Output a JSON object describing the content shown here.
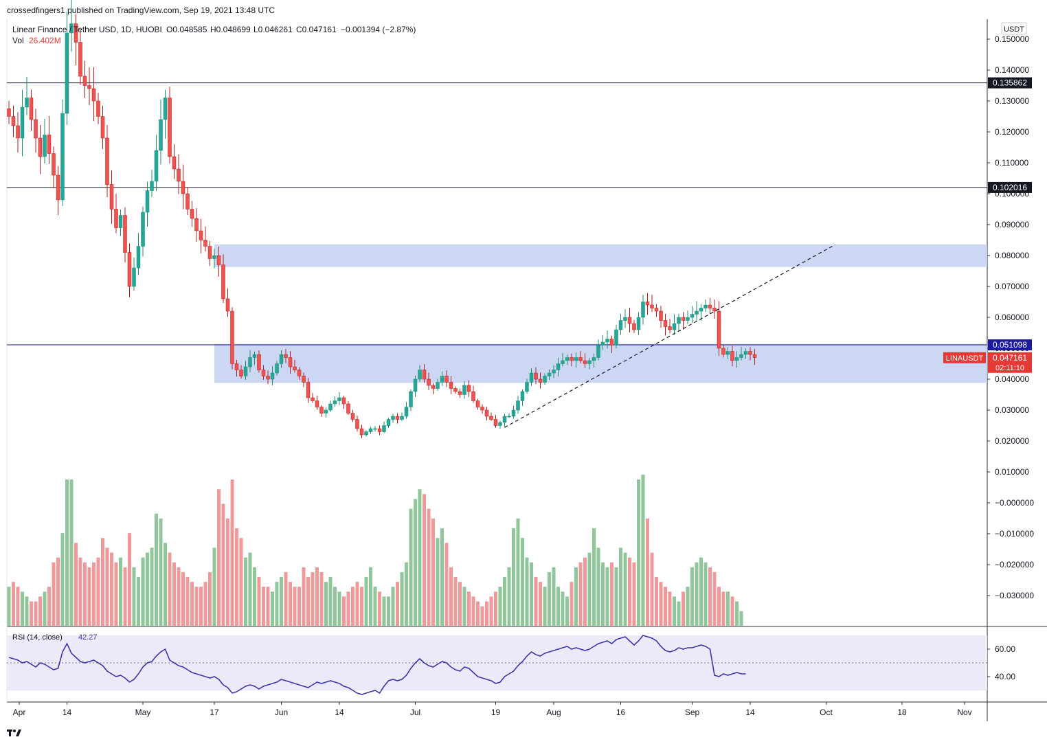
{
  "header": {
    "publisher_line": "crossedfingers1 published on TradingView.com, Sep 19, 2021 13:48 UTC"
  },
  "legend": {
    "symbol": "Linear Finance / Tether USD, 1D, HUOBI",
    "open": "O0.048585",
    "high": "H0.048699",
    "low": "L0.046261",
    "close": "C0.047161",
    "change": "−0.001394 (−2.87%)",
    "vol_label": "Vol",
    "vol_value": "26.402M",
    "rsi_label": "RSI (14, close)",
    "rsi_value": "42.27"
  },
  "price_axis": {
    "currency": "USDT",
    "ticks": [
      {
        "v": 0.15,
        "t": "0.150000"
      },
      {
        "v": 0.14,
        "t": "0.140000"
      },
      {
        "v": 0.13,
        "t": "0.130000"
      },
      {
        "v": 0.12,
        "t": "0.120000"
      },
      {
        "v": 0.11,
        "t": "0.110000"
      },
      {
        "v": 0.1,
        "t": "0.100000"
      },
      {
        "v": 0.09,
        "t": "0.090000"
      },
      {
        "v": 0.08,
        "t": "0.080000"
      },
      {
        "v": 0.07,
        "t": "0.070000"
      },
      {
        "v": 0.06,
        "t": "0.060000"
      },
      {
        "v": 0.05,
        "t": "0.050000"
      },
      {
        "v": 0.04,
        "t": "0.040000"
      },
      {
        "v": 0.03,
        "t": "0.030000"
      },
      {
        "v": 0.02,
        "t": "0.020000"
      },
      {
        "v": 0.01,
        "t": "0.010000"
      },
      {
        "v": 0.0,
        "t": "−0.000000"
      },
      {
        "v": -0.01,
        "t": "−0.010000"
      },
      {
        "v": -0.02,
        "t": "−0.020000"
      },
      {
        "v": -0.03,
        "t": "−0.030000"
      }
    ],
    "tags": [
      {
        "value": 0.135862,
        "text": "0.135862",
        "bg": "#131722",
        "fg": "#ffffff"
      },
      {
        "value": 0.102016,
        "text": "0.102016",
        "bg": "#131722",
        "fg": "#ffffff"
      },
      {
        "value": 0.051098,
        "text": "0.051098",
        "bg": "#1a1a9c",
        "fg": "#ffffff"
      }
    ],
    "last_price": {
      "value": 0.047161,
      "text": "0.047161",
      "countdown": "02:11:10",
      "ticker": "LINAUSDT",
      "bg": "#e53935"
    }
  },
  "rsi_axis": {
    "ticks": [
      {
        "v": 60,
        "t": "60.00"
      },
      {
        "v": 40,
        "t": "40.00"
      }
    ]
  },
  "time_axis": {
    "ticks": [
      {
        "d": 0,
        "t": "Apr"
      },
      {
        "d": 13,
        "t": "14"
      },
      {
        "d": 30,
        "t": "May"
      },
      {
        "d": 46,
        "t": "17"
      },
      {
        "d": 61,
        "t": "Jun"
      },
      {
        "d": 74,
        "t": "14"
      },
      {
        "d": 91,
        "t": "Jul"
      },
      {
        "d": 109,
        "t": "19"
      },
      {
        "d": 122,
        "t": "Aug"
      },
      {
        "d": 137,
        "t": "16"
      },
      {
        "d": 153,
        "t": "Sep"
      },
      {
        "d": 166,
        "t": "14"
      },
      {
        "d": 183,
        "t": "Oct"
      },
      {
        "d": 200,
        "t": "18"
      },
      {
        "d": 214,
        "t": "Nov"
      }
    ]
  },
  "colors": {
    "up": "#26a69a",
    "down": "#ef5350",
    "up_wick": "#1b8f6a",
    "down_wick": "#b71c1c",
    "vol_up": "#8fc79a",
    "vol_down": "#ef9a9a",
    "zone": "#c7d3f2",
    "rsi_line": "#3a35a8",
    "rsi_band": "#ece9f8"
  },
  "chart_data": {
    "type": "candlestick",
    "title": "Linear Finance / Tether USD, 1D, HUOBI",
    "x_axis": "date (Apr 1 2021 = day 0)",
    "ylim": [
      -0.039,
      0.16
    ],
    "horizontal_lines": [
      0.135862,
      0.102016,
      0.051098
    ],
    "zones": [
      {
        "from_day": 46,
        "to_day": null,
        "low": 0.0763,
        "high": 0.0836
      },
      {
        "from_day": 46,
        "to_day": null,
        "low": 0.0388,
        "high": 0.0514
      }
    ],
    "trendline": {
      "from": [
        111,
        0.0244
      ],
      "to": [
        185,
        0.0835
      ],
      "style": "dashed"
    },
    "series": [
      {
        "name": "price",
        "closes": [
          0.125,
          0.122,
          0.118,
          0.128,
          0.131,
          0.124,
          0.118,
          0.112,
          0.119,
          0.113,
          0.106,
          0.098,
          0.126,
          0.152,
          0.155,
          0.149,
          0.138,
          0.135,
          0.134,
          0.13,
          0.125,
          0.118,
          0.103,
          0.095,
          0.089,
          0.093,
          0.081,
          0.07,
          0.076,
          0.083,
          0.094,
          0.101,
          0.104,
          0.114,
          0.124,
          0.131,
          0.112,
          0.108,
          0.104,
          0.1,
          0.095,
          0.092,
          0.088,
          0.085,
          0.083,
          0.079,
          0.08,
          0.077,
          0.066,
          0.062,
          0.045,
          0.043,
          0.041,
          0.044,
          0.047,
          0.048,
          0.043,
          0.041,
          0.04,
          0.042,
          0.045,
          0.048,
          0.047,
          0.044,
          0.043,
          0.041,
          0.039,
          0.034,
          0.033,
          0.031,
          0.029,
          0.03,
          0.032,
          0.033,
          0.034,
          0.032,
          0.029,
          0.027,
          0.024,
          0.022,
          0.023,
          0.024,
          0.024,
          0.023,
          0.025,
          0.027,
          0.028,
          0.027,
          0.028,
          0.031,
          0.036,
          0.04,
          0.043,
          0.04,
          0.038,
          0.037,
          0.039,
          0.041,
          0.039,
          0.037,
          0.036,
          0.035,
          0.038,
          0.036,
          0.033,
          0.031,
          0.03,
          0.028,
          0.027,
          0.025,
          0.026,
          0.028,
          0.028,
          0.03,
          0.033,
          0.036,
          0.039,
          0.042,
          0.04,
          0.039,
          0.041,
          0.042,
          0.043,
          0.045,
          0.046,
          0.047,
          0.046,
          0.047,
          0.046,
          0.045,
          0.046,
          0.047,
          0.051,
          0.052,
          0.053,
          0.051,
          0.056,
          0.059,
          0.06,
          0.058,
          0.056,
          0.06,
          0.065,
          0.064,
          0.063,
          0.062,
          0.059,
          0.057,
          0.056,
          0.058,
          0.06,
          0.059,
          0.06,
          0.061,
          0.062,
          0.063,
          0.064,
          0.063,
          0.062,
          0.05,
          0.048,
          0.049,
          0.046,
          0.047,
          0.048,
          0.049,
          0.048,
          0.047
        ]
      },
      {
        "name": "Vol",
        "unit": "relative",
        "values": [
          8,
          9,
          8,
          7,
          6,
          5,
          5,
          6,
          7,
          8,
          13,
          14,
          19,
          30,
          30,
          17,
          14,
          13,
          12,
          13,
          14,
          18,
          16,
          15,
          13,
          14,
          12,
          19,
          12,
          10,
          14,
          15,
          16,
          23,
          22,
          17,
          15,
          13,
          12,
          11,
          10,
          9,
          8,
          8,
          9,
          11,
          16,
          28,
          25,
          22,
          30,
          20,
          18,
          14,
          15,
          12,
          10,
          8,
          8,
          7,
          9,
          10,
          11,
          9,
          8,
          8,
          12,
          10,
          11,
          12,
          11,
          9,
          10,
          8,
          7,
          6,
          7,
          8,
          9,
          8,
          10,
          12,
          8,
          7,
          6,
          6,
          8,
          9,
          11,
          13,
          24,
          26,
          28,
          27,
          24,
          22,
          18,
          20,
          17,
          12,
          10,
          9,
          8,
          7,
          6,
          5,
          4,
          5,
          6,
          7,
          8,
          10,
          12,
          20,
          22,
          18,
          14,
          13,
          10,
          9,
          8,
          11,
          12,
          8,
          7,
          6,
          9,
          12,
          13,
          14,
          15,
          20,
          16,
          13,
          12,
          13,
          12,
          16,
          15,
          14,
          13,
          30,
          31,
          22,
          15,
          10,
          9,
          8,
          7,
          6,
          5,
          7,
          8,
          12,
          13,
          14,
          13,
          12,
          11,
          8,
          7,
          7,
          6,
          5,
          3
        ]
      },
      {
        "name": "RSI (14, close)",
        "values": [
          54,
          53,
          52,
          50,
          51,
          49,
          47,
          50,
          49,
          47,
          45,
          46,
          58,
          64,
          57,
          54,
          51,
          50,
          51,
          52,
          50,
          48,
          44,
          42,
          40,
          41,
          39,
          36,
          38,
          42,
          47,
          50,
          51,
          55,
          58,
          60,
          52,
          50,
          48,
          47,
          45,
          43,
          42,
          41,
          40,
          39,
          40,
          38,
          34,
          32,
          28,
          29,
          31,
          33,
          34,
          33,
          31,
          33,
          34,
          35,
          36,
          38,
          37,
          36,
          35,
          34,
          33,
          32,
          34,
          36,
          35,
          36,
          37,
          36,
          35,
          33,
          32,
          30,
          28,
          27,
          28,
          29,
          30,
          28,
          33,
          37,
          38,
          37,
          38,
          41,
          46,
          50,
          53,
          50,
          48,
          47,
          49,
          51,
          50,
          47,
          45,
          44,
          47,
          46,
          43,
          40,
          39,
          38,
          37,
          35,
          36,
          40,
          42,
          44,
          48,
          51,
          55,
          58,
          56,
          55,
          57,
          58,
          59,
          60,
          61,
          62,
          60,
          61,
          60,
          59,
          60,
          62,
          64,
          65,
          66,
          64,
          67,
          68,
          69,
          66,
          63,
          66,
          70,
          69,
          68,
          66,
          62,
          59,
          58,
          59,
          61,
          60,
          61,
          61,
          62,
          63,
          62,
          60,
          41,
          40,
          42,
          41,
          42,
          43,
          42,
          42
        ]
      }
    ]
  }
}
